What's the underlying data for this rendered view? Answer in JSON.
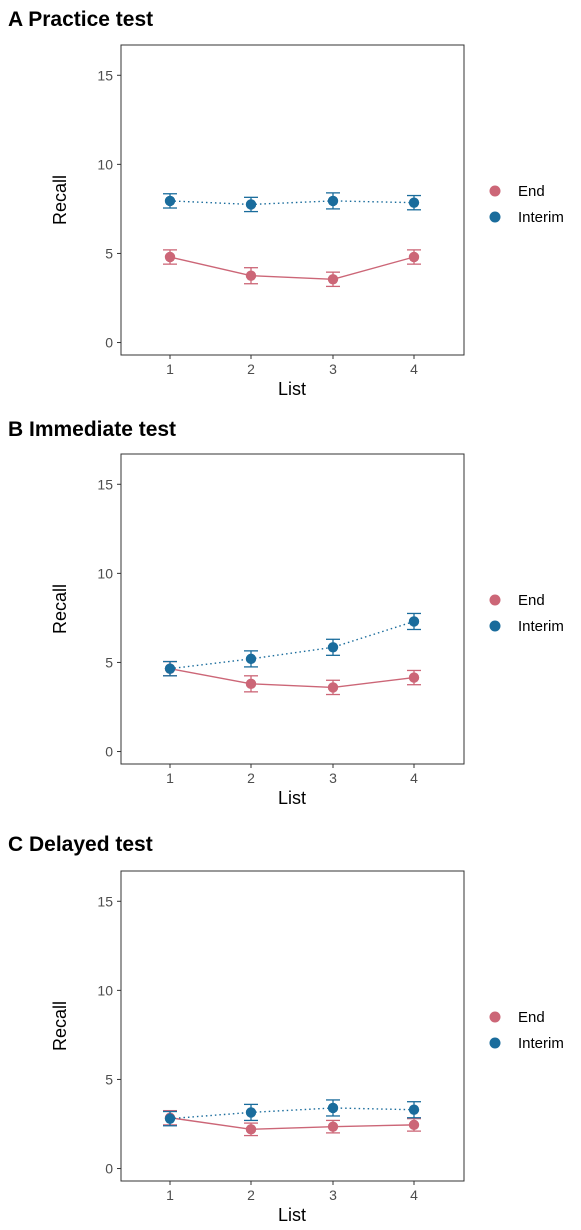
{
  "chart_data": [
    {
      "type": "line",
      "title": "A Practice test",
      "xlabel": "List",
      "ylabel": "Recall",
      "ylim": [
        -0.7,
        16.7
      ],
      "yticks": [
        0,
        5,
        10,
        15
      ],
      "categories": [
        "1",
        "2",
        "3",
        "4"
      ],
      "grid": false,
      "legend_position": "right",
      "series": [
        {
          "name": "End",
          "color": "#cc6677",
          "line_style": "solid",
          "values": [
            4.8,
            3.75,
            3.55,
            4.8
          ],
          "error": [
            0.4,
            0.45,
            0.4,
            0.4
          ]
        },
        {
          "name": "Interim",
          "color": "#1a6c9c",
          "line_style": "dotted",
          "values": [
            7.95,
            7.75,
            7.95,
            7.85
          ],
          "error": [
            0.4,
            0.4,
            0.45,
            0.4
          ]
        }
      ]
    },
    {
      "type": "line",
      "title": "B Immediate test",
      "xlabel": "List",
      "ylabel": "Recall",
      "ylim": [
        -0.7,
        16.7
      ],
      "yticks": [
        0,
        5,
        10,
        15
      ],
      "categories": [
        "1",
        "2",
        "3",
        "4"
      ],
      "grid": false,
      "legend_position": "right",
      "series": [
        {
          "name": "End",
          "color": "#cc6677",
          "line_style": "solid",
          "values": [
            4.65,
            3.8,
            3.6,
            4.15
          ],
          "error": [
            0.4,
            0.45,
            0.4,
            0.4
          ]
        },
        {
          "name": "Interim",
          "color": "#1a6c9c",
          "line_style": "dotted",
          "values": [
            4.65,
            5.2,
            5.85,
            7.3
          ],
          "error": [
            0.4,
            0.45,
            0.45,
            0.45
          ]
        }
      ]
    },
    {
      "type": "line",
      "title": "C Delayed test",
      "xlabel": "List",
      "ylabel": "Recall",
      "ylim": [
        -0.7,
        16.7
      ],
      "yticks": [
        0,
        5,
        10,
        15
      ],
      "categories": [
        "1",
        "2",
        "3",
        "4"
      ],
      "grid": false,
      "legend_position": "right",
      "series": [
        {
          "name": "End",
          "color": "#cc6677",
          "line_style": "solid",
          "values": [
            2.85,
            2.2,
            2.35,
            2.45
          ],
          "error": [
            0.4,
            0.35,
            0.35,
            0.35
          ]
        },
        {
          "name": "Interim",
          "color": "#1a6c9c",
          "line_style": "dotted",
          "values": [
            2.8,
            3.15,
            3.4,
            3.3
          ],
          "error": [
            0.4,
            0.45,
            0.45,
            0.45
          ]
        }
      ]
    }
  ]
}
